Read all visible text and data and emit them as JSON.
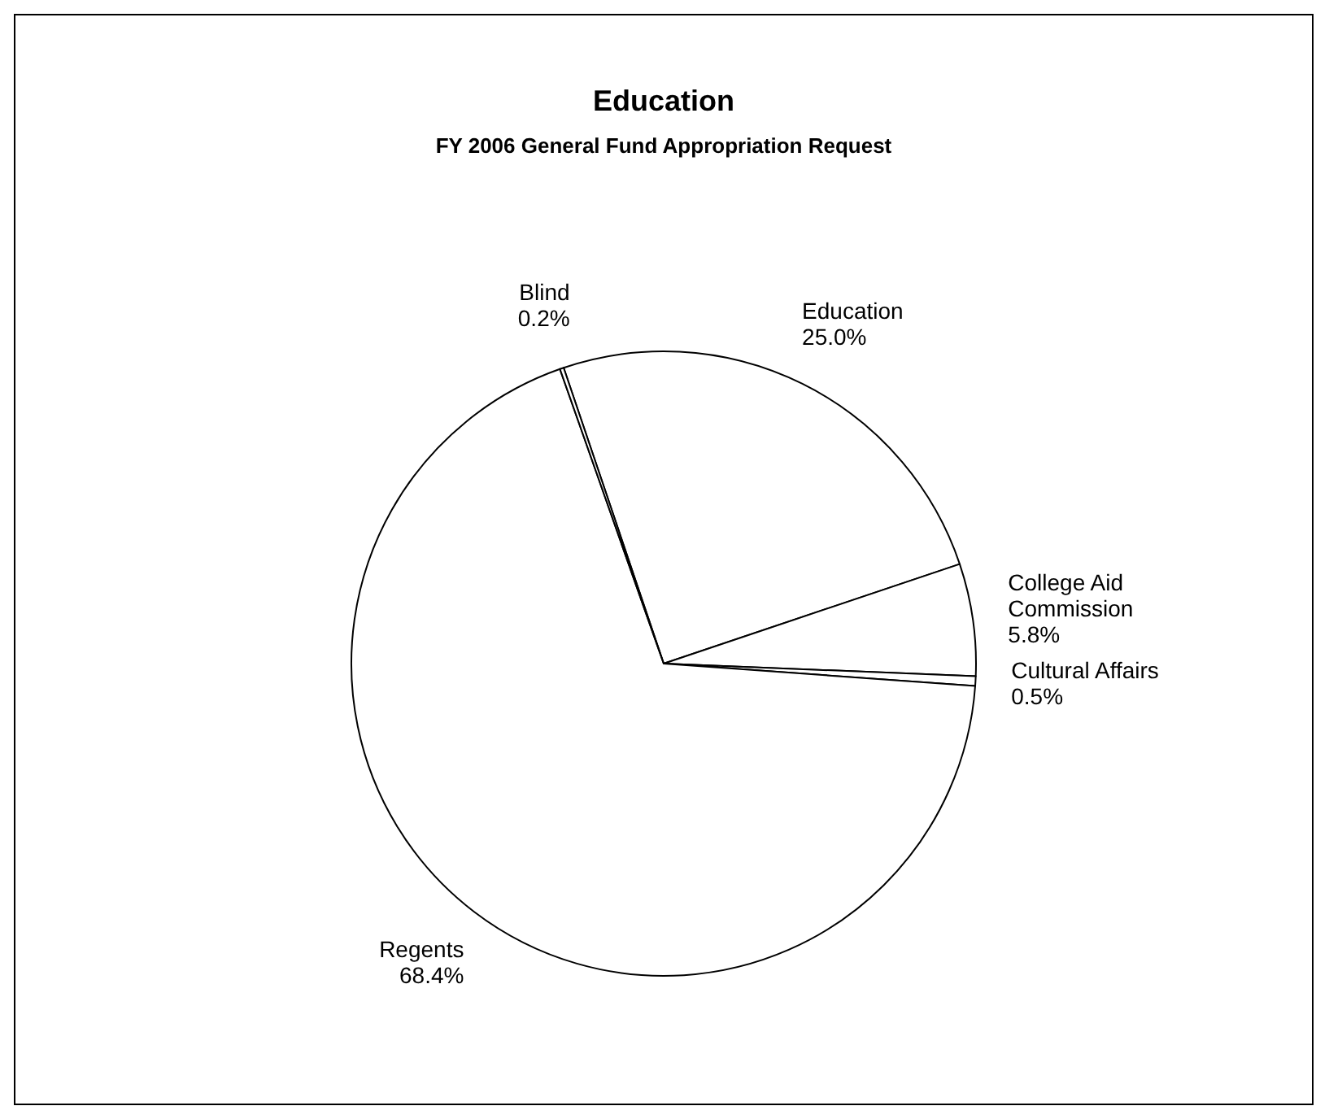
{
  "chart_data": {
    "type": "pie",
    "title": "Education",
    "subtitle": "FY 2006 General Fund Appropriation Request",
    "categories": [
      "Education",
      "College Aid Commission",
      "Cultural Affairs",
      "Regents",
      "Blind"
    ],
    "values": [
      25.0,
      5.8,
      0.5,
      68.4,
      0.2
    ],
    "value_labels": [
      "25.0%",
      "5.8%",
      "0.5%",
      "68.4%",
      "0.2%"
    ],
    "colors": [
      "#ffffff",
      "#ffffff",
      "#ffffff",
      "#ffffff",
      "#ffffff"
    ]
  }
}
